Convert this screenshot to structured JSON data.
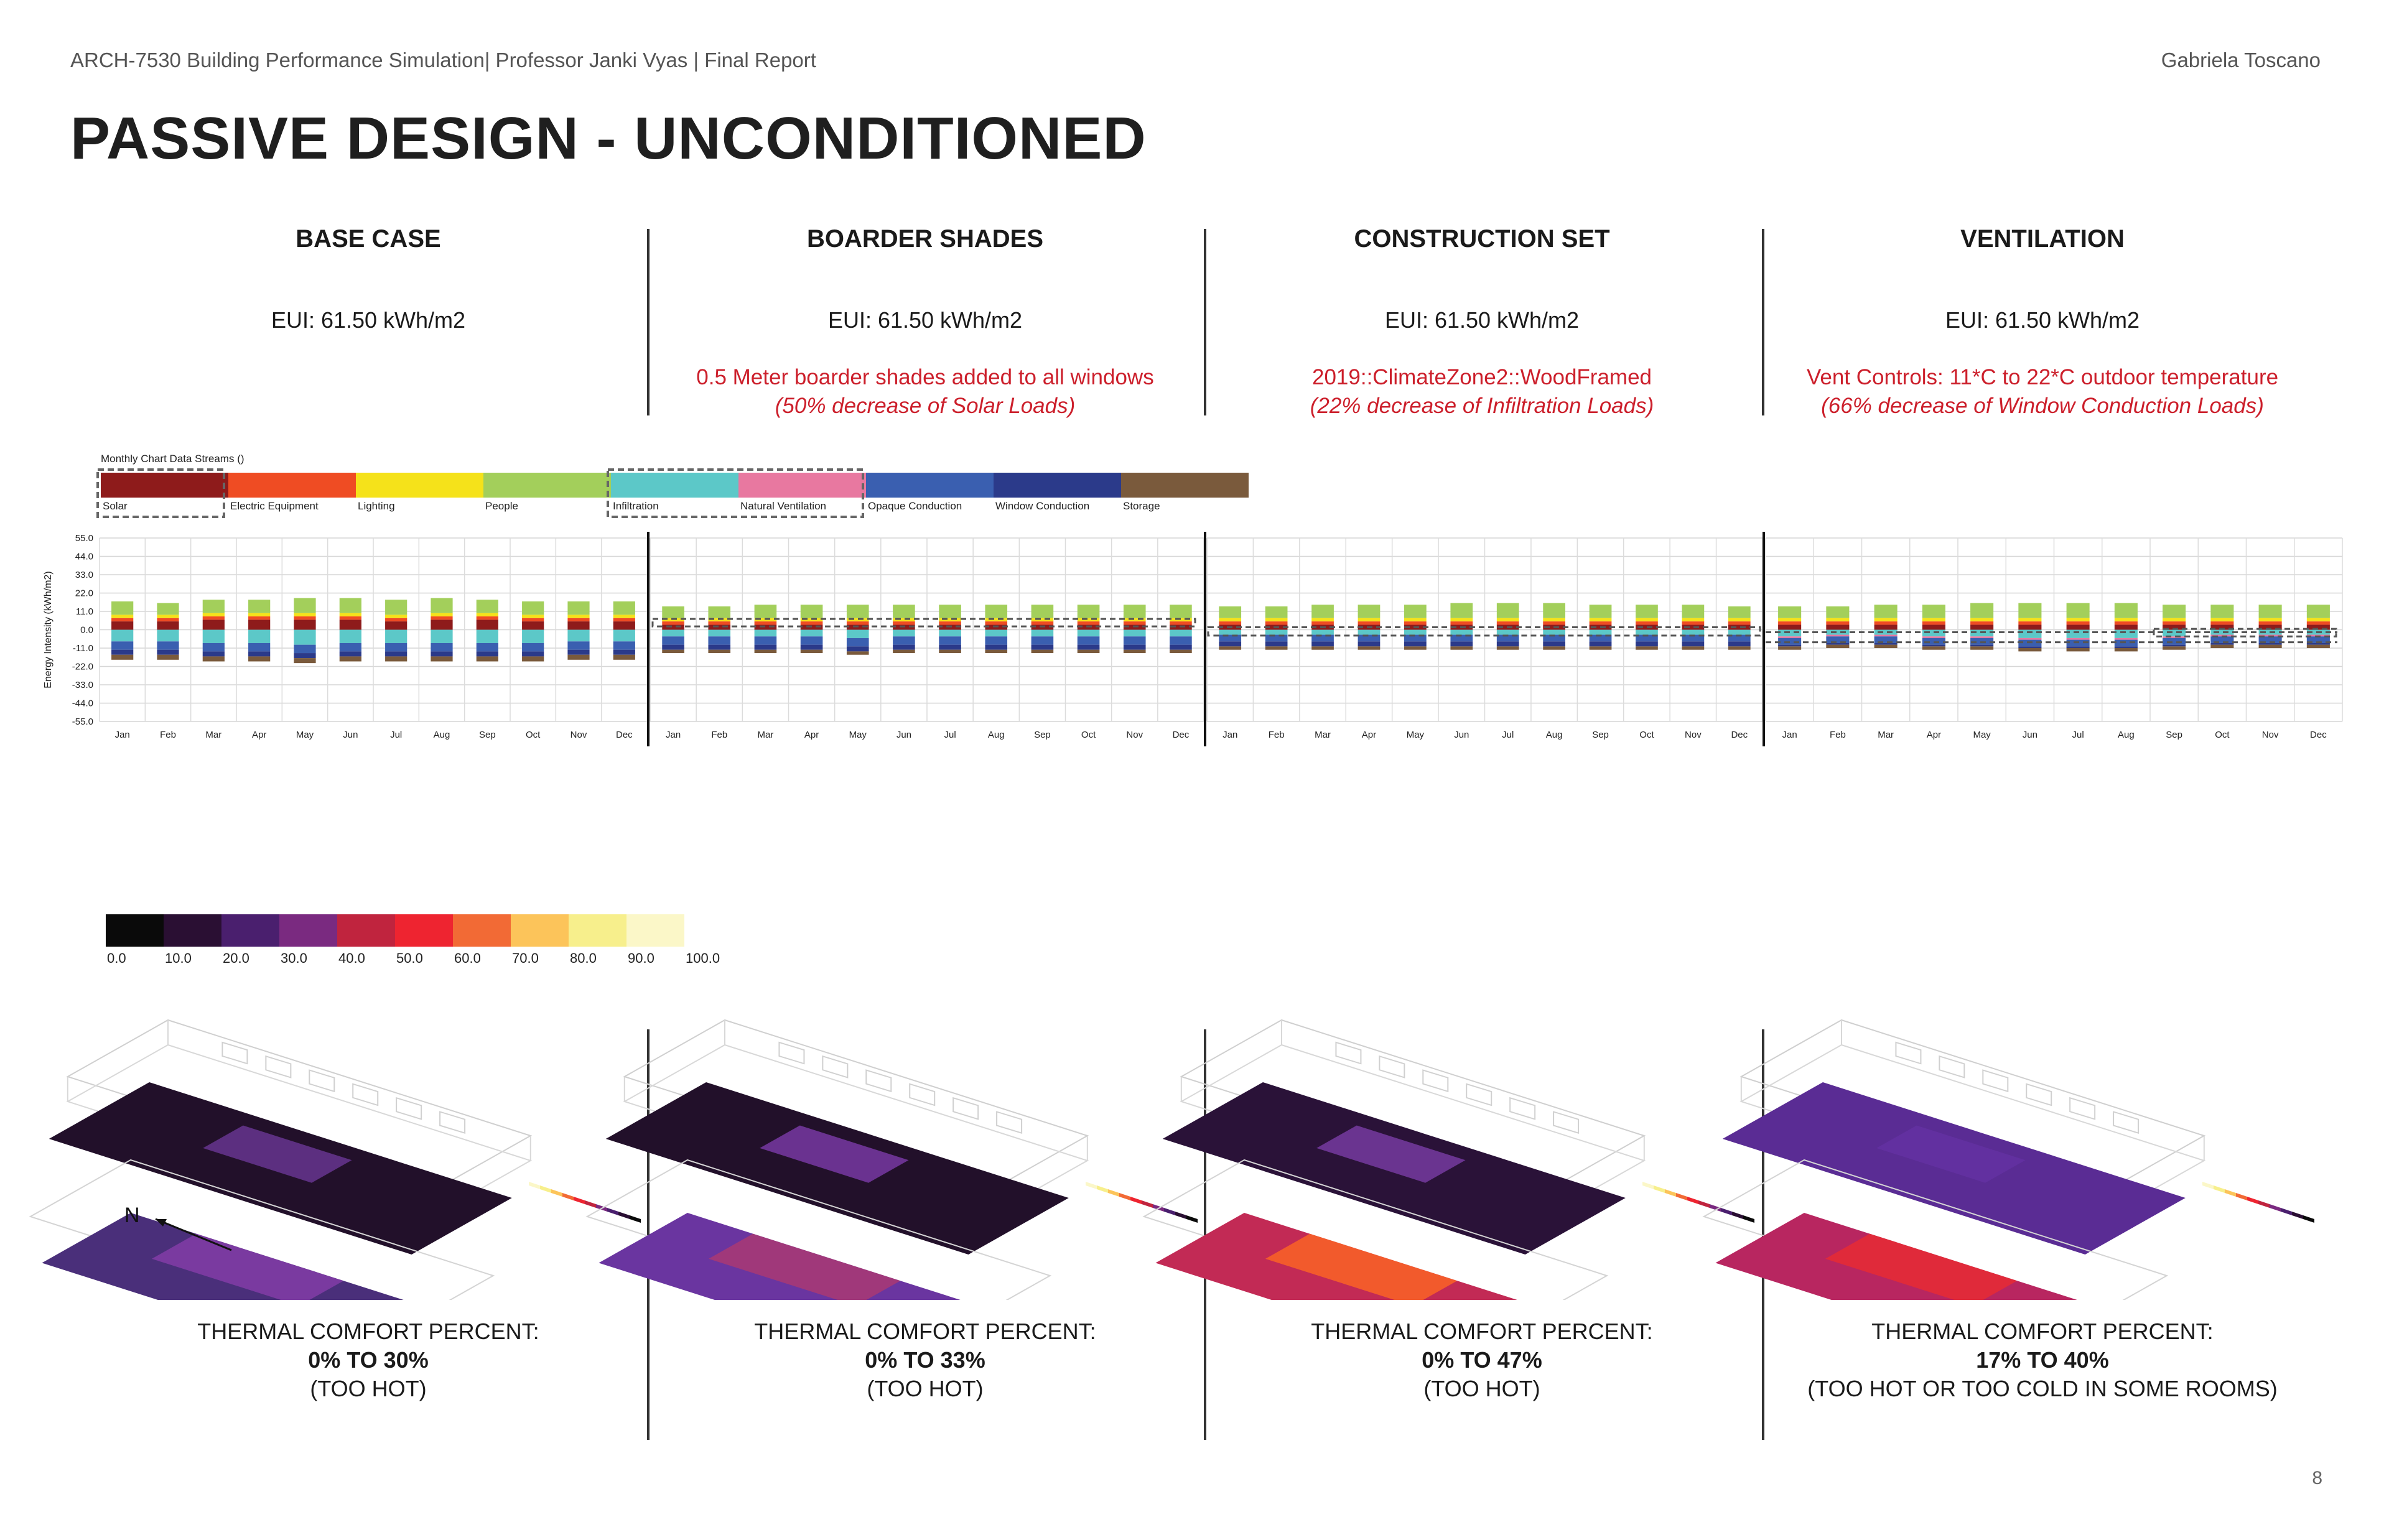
{
  "header": {
    "left": "ARCH-7530 Building Performance Simulation| Professor Janki Vyas | Final Report",
    "right": "Gabriela Toscano"
  },
  "page_title": "PASSIVE DESIGN - UNCONDITIONED",
  "page_number": "8",
  "columns": [
    {
      "title": "BASE CASE",
      "eui": "EUI: 61.50  kWh/m2",
      "note1": "",
      "note2": "",
      "comfort_label": "THERMAL COMFORT PERCENT:",
      "comfort_range": "0% TO 30%",
      "comfort_note": "(TOO HOT)"
    },
    {
      "title": "BOARDER SHADES",
      "eui": "EUI: 61.50  kWh/m2",
      "note1": "0.5 Meter boarder shades added to all windows",
      "note2": "(50% decrease of Solar Loads)",
      "comfort_label": "THERMAL COMFORT PERCENT:",
      "comfort_range": "0% TO 33%",
      "comfort_note": "(TOO HOT)"
    },
    {
      "title": "CONSTRUCTION SET",
      "eui": "EUI: 61.50  kWh/m2",
      "note1": "2019::ClimateZone2::WoodFramed",
      "note2": "(22% decrease of Infiltration Loads)",
      "comfort_label": "THERMAL COMFORT PERCENT:",
      "comfort_range": "0% TO 47%",
      "comfort_note": "(TOO HOT)"
    },
    {
      "title": "VENTILATION",
      "eui": "EUI: 61.50  kWh/m2",
      "note1": "Vent Controls: 11*C  to 22*C outdoor temperature",
      "note2": "(66% decrease of Window Conduction Loads)",
      "comfort_label": "THERMAL COMFORT PERCENT:",
      "comfort_range": "17% TO 40%",
      "comfort_note": "(TOO HOT OR TOO COLD IN SOME ROOMS)"
    }
  ],
  "compass_label": "N",
  "chart_data": {
    "type": "bar",
    "title": "Monthly Chart Data Streams ()",
    "ylabel": "Energy Intensity (kWh/m2)",
    "ylim": [
      -55,
      55
    ],
    "yticks": [
      "55.0",
      "44.0",
      "33.0",
      "22.0",
      "11.0",
      "0.0",
      "-11.0",
      "-22.0",
      "-33.0",
      "-44.0",
      "-55.0"
    ],
    "categories": [
      "Jan",
      "Feb",
      "Mar",
      "Apr",
      "May",
      "Jun",
      "Jul",
      "Aug",
      "Sep",
      "Oct",
      "Nov",
      "Dec"
    ],
    "legend": [
      {
        "name": "Solar",
        "color": "#8e1b1b"
      },
      {
        "name": "Electric Equipment",
        "color": "#ef4c23"
      },
      {
        "name": "Lighting",
        "color": "#f5e21a"
      },
      {
        "name": "People",
        "color": "#a3cf5b"
      },
      {
        "name": "Infiltration",
        "color": "#5cc8c8"
      },
      {
        "name": "Natural Ventilation",
        "color": "#e878a0"
      },
      {
        "name": "Opaque Conduction",
        "color": "#3a5fb0"
      },
      {
        "name": "Window Conduction",
        "color": "#2b3a8a"
      },
      {
        "name": "Storage",
        "color": "#7a5a3c"
      }
    ],
    "panels": [
      {
        "name": "BASE CASE",
        "positive": {
          "Solar": [
            5,
            5,
            6,
            6,
            6,
            6,
            5,
            6,
            6,
            5,
            5,
            5
          ],
          "Electric Equipment": [
            2,
            2,
            2,
            2,
            2,
            2,
            2,
            2,
            2,
            2,
            2,
            2
          ],
          "Lighting": [
            2,
            2,
            2,
            2,
            2,
            2,
            2,
            2,
            2,
            2,
            2,
            2
          ],
          "People": [
            8,
            7,
            8,
            8,
            9,
            9,
            9,
            9,
            8,
            8,
            8,
            8
          ]
        },
        "negative": {
          "Infiltration": [
            -7,
            -7,
            -8,
            -8,
            -9,
            -8,
            -8,
            -8,
            -8,
            -8,
            -7,
            -7
          ],
          "Opaque Conduction": [
            -5,
            -5,
            -5,
            -5,
            -5,
            -5,
            -5,
            -5,
            -5,
            -5,
            -5,
            -5
          ],
          "Window Conduction": [
            -3,
            -3,
            -3,
            -3,
            -3,
            -3,
            -3,
            -3,
            -3,
            -3,
            -3,
            -3
          ],
          "Storage": [
            -3,
            -3,
            -3,
            -3,
            -3,
            -3,
            -3,
            -3,
            -3,
            -3,
            -3,
            -3
          ]
        }
      },
      {
        "name": "BOARDER SHADES",
        "positive": {
          "Solar": [
            3,
            3,
            3,
            3,
            3,
            3,
            3,
            3,
            3,
            3,
            3,
            3
          ],
          "Electric Equipment": [
            2,
            2,
            2,
            2,
            2,
            2,
            2,
            2,
            2,
            2,
            2,
            2
          ],
          "Lighting": [
            2,
            2,
            2,
            2,
            2,
            2,
            2,
            2,
            2,
            2,
            2,
            2
          ],
          "People": [
            7,
            7,
            8,
            8,
            8,
            8,
            8,
            8,
            8,
            8,
            8,
            8
          ]
        },
        "negative": {
          "Infiltration": [
            -4,
            -4,
            -4,
            -4,
            -5,
            -4,
            -4,
            -4,
            -4,
            -4,
            -4,
            -4
          ],
          "Opaque Conduction": [
            -5,
            -5,
            -5,
            -5,
            -5,
            -5,
            -5,
            -5,
            -5,
            -5,
            -5,
            -5
          ],
          "Window Conduction": [
            -3,
            -3,
            -3,
            -3,
            -3,
            -3,
            -3,
            -3,
            -3,
            -3,
            -3,
            -3
          ],
          "Storage": [
            -2,
            -2,
            -2,
            -2,
            -2,
            -2,
            -2,
            -2,
            -2,
            -2,
            -2,
            -2
          ]
        }
      },
      {
        "name": "CONSTRUCTION SET",
        "positive": {
          "Solar": [
            3,
            3,
            3,
            3,
            3,
            3,
            3,
            3,
            3,
            3,
            3,
            3
          ],
          "Electric Equipment": [
            2,
            2,
            2,
            2,
            2,
            2,
            2,
            2,
            2,
            2,
            2,
            2
          ],
          "Lighting": [
            2,
            2,
            2,
            2,
            2,
            2,
            2,
            2,
            2,
            2,
            2,
            2
          ],
          "People": [
            7,
            7,
            8,
            8,
            8,
            9,
            9,
            9,
            8,
            8,
            8,
            7
          ]
        },
        "negative": {
          "Infiltration": [
            -3,
            -3,
            -3,
            -3,
            -3,
            -3,
            -3,
            -3,
            -3,
            -3,
            -3,
            -3
          ],
          "Opaque Conduction": [
            -4,
            -4,
            -4,
            -4,
            -4,
            -4,
            -4,
            -4,
            -4,
            -4,
            -4,
            -4
          ],
          "Window Conduction": [
            -3,
            -3,
            -3,
            -3,
            -3,
            -3,
            -3,
            -3,
            -3,
            -3,
            -3,
            -3
          ],
          "Storage": [
            -2,
            -2,
            -2,
            -2,
            -2,
            -2,
            -2,
            -2,
            -2,
            -2,
            -2,
            -2
          ]
        }
      },
      {
        "name": "VENTILATION",
        "positive": {
          "Solar": [
            3,
            3,
            3,
            3,
            3,
            3,
            3,
            3,
            3,
            3,
            3,
            3
          ],
          "Electric Equipment": [
            2,
            2,
            2,
            2,
            2,
            2,
            2,
            2,
            2,
            2,
            2,
            2
          ],
          "Lighting": [
            2,
            2,
            2,
            2,
            2,
            2,
            2,
            2,
            2,
            2,
            2,
            2
          ],
          "People": [
            7,
            7,
            8,
            8,
            9,
            9,
            9,
            9,
            8,
            8,
            8,
            8
          ]
        },
        "negative": {
          "Infiltration": [
            -4,
            -3,
            -3,
            -4,
            -4,
            -5,
            -5,
            -5,
            -4,
            -3,
            -3,
            -3
          ],
          "Natural Ventilation": [
            -1,
            -1,
            -1,
            -1,
            -1,
            -1,
            -1,
            -1,
            -1,
            -1,
            -1,
            -1
          ],
          "Opaque Conduction": [
            -4,
            -4,
            -4,
            -4,
            -4,
            -4,
            -4,
            -4,
            -4,
            -4,
            -4,
            -4
          ],
          "Window Conduction": [
            -1,
            -1,
            -1,
            -1,
            -1,
            -1,
            -1,
            -1,
            -1,
            -1,
            -1,
            -1
          ],
          "Storage": [
            -2,
            -2,
            -2,
            -2,
            -2,
            -2,
            -2,
            -2,
            -2,
            -2,
            -2,
            -2
          ]
        }
      }
    ]
  },
  "colorbar": {
    "labels": [
      "0.0",
      "10.0",
      "20.0",
      "30.0",
      "40.0",
      "50.0",
      "60.0",
      "70.0",
      "80.0",
      "90.0",
      "100.0"
    ],
    "colors": [
      "#0a0a0a",
      "#2a0f33",
      "#4a1f6e",
      "#7a2a80",
      "#c0243e",
      "#ee2430",
      "#f26a35",
      "#fcc45a",
      "#f7ef8c",
      "#fbf7c8"
    ]
  },
  "comfort_maps": [
    {
      "upper_floor": {
        "outer": "#22102a",
        "inner": "#5c2f80"
      },
      "lower_floor": {
        "outer": "#4a2f7a",
        "inner": "#7a3aa0"
      }
    },
    {
      "upper_floor": {
        "outer": "#22102a",
        "inner": "#6a3290"
      },
      "lower_floor": {
        "outer": "#6a35a0",
        "inner": "#a0387a"
      }
    },
    {
      "upper_floor": {
        "outer": "#2a1238",
        "inner": "#6a3490"
      },
      "lower_floor": {
        "outer": "#c22a55",
        "inner": "#f25a2c"
      }
    },
    {
      "upper_floor": {
        "outer": "#5a2c94",
        "inner": "#6230a0"
      },
      "lower_floor": {
        "outer": "#b82660",
        "inner": "#e02a3a"
      }
    }
  ]
}
